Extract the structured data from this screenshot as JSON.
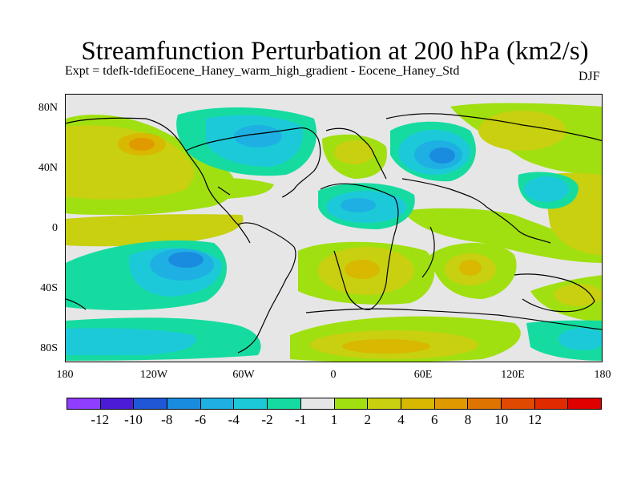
{
  "title": "Streamfunction Perturbation at 200 hPa (km2/s)",
  "subtitle": "Expt = tdefk-tdefiEocene_Haney_warm_high_gradient - Eocene_Haney_Std",
  "season": "DJF",
  "map": {
    "lat_labels": [
      "80N",
      "40N",
      "0",
      "40S",
      "80S"
    ],
    "lon_labels": [
      "180",
      "120W",
      "60W",
      "0",
      "60E",
      "120E",
      "180"
    ],
    "background_value_color": "#e6e6e6",
    "coastline_color": "#000000"
  },
  "colorbar": {
    "colors": [
      "#8f3dff",
      "#4c1bd8",
      "#1f57d6",
      "#1a8ce0",
      "#1eb0e3",
      "#1cc9d8",
      "#16dba0",
      "#e6e6e6",
      "#a0e010",
      "#c8d010",
      "#d8b800",
      "#e09a00",
      "#e07400",
      "#e04a00",
      "#e02a00",
      "#e00000"
    ],
    "labels": [
      "-12",
      "-10",
      "-8",
      "-6",
      "-4",
      "-2",
      "-1",
      "1",
      "2",
      "4",
      "6",
      "8",
      "10",
      "12"
    ]
  }
}
